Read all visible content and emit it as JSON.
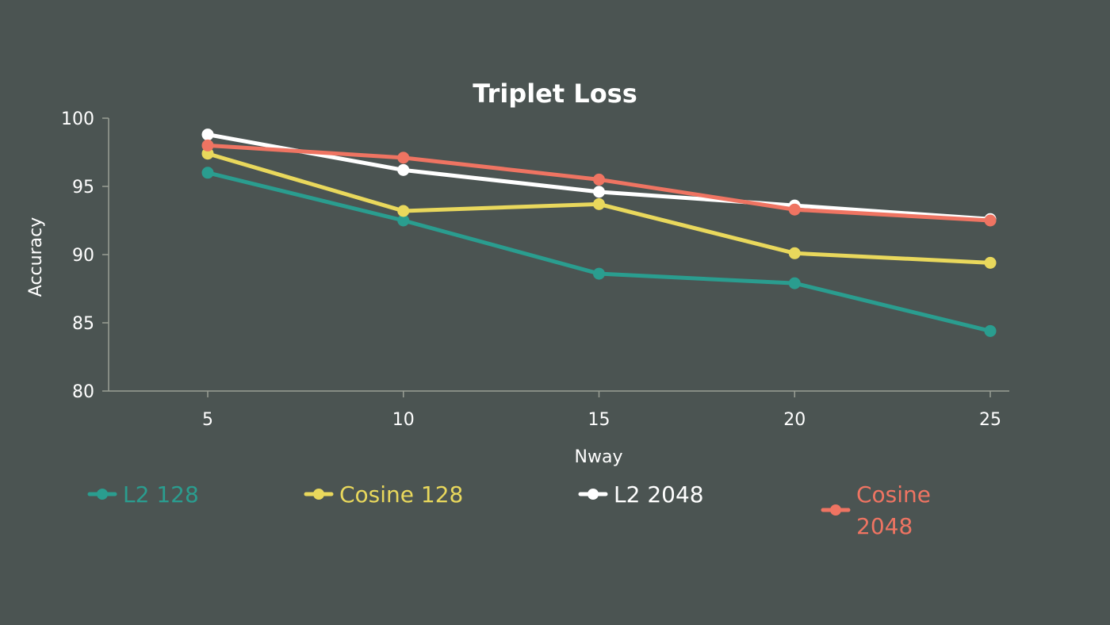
{
  "chart_data": {
    "type": "line",
    "title": "Triplet Loss",
    "xlabel": "Nway",
    "ylabel": "Accuracy",
    "x": [
      5,
      10,
      15,
      20,
      25
    ],
    "x_tick_labels": [
      "5",
      "10",
      "15",
      "20",
      "25"
    ],
    "ylim": [
      80,
      100
    ],
    "y_ticks": [
      80,
      85,
      90,
      95,
      100
    ],
    "y_tick_labels": [
      "80",
      "85",
      "90",
      "95",
      "100"
    ],
    "grid": false,
    "legend_position": "bottom",
    "series": [
      {
        "name": "L2 128",
        "name_lines": [
          "L2 128"
        ],
        "color": "#2a9d8f",
        "values": [
          96.0,
          92.5,
          88.6,
          87.9,
          84.4
        ]
      },
      {
        "name": "Cosine 128",
        "name_lines": [
          "Cosine 128"
        ],
        "color": "#e9d85c",
        "values": [
          97.4,
          93.2,
          93.7,
          90.1,
          89.4
        ]
      },
      {
        "name": "L2 2048",
        "name_lines": [
          "L2 2048"
        ],
        "color": "#ffffff",
        "values": [
          98.8,
          96.2,
          94.6,
          93.6,
          92.6
        ]
      },
      {
        "name": "Cosine 2048",
        "name_lines": [
          "Cosine",
          "2048"
        ],
        "color": "#ef7462",
        "values": [
          98.0,
          97.1,
          95.5,
          93.3,
          92.5
        ]
      }
    ]
  }
}
